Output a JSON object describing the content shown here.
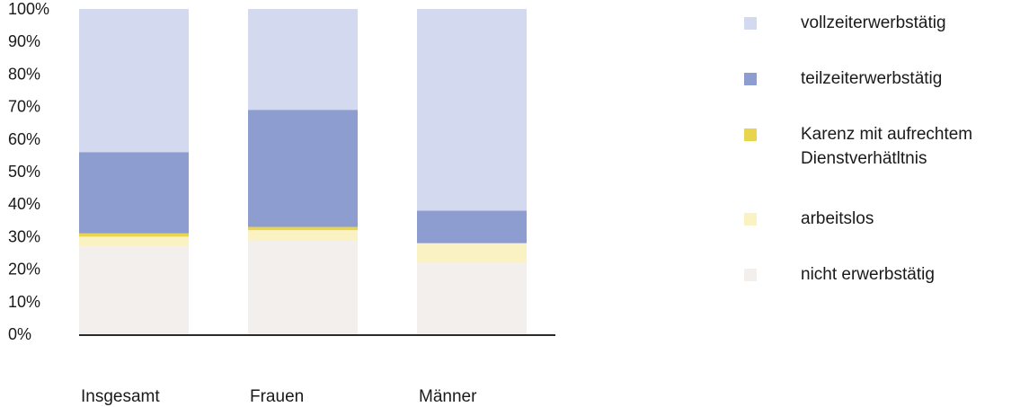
{
  "chart_data": {
    "type": "bar",
    "stacked": true,
    "categories": [
      "Insgesamt",
      "Frauen",
      "Männer"
    ],
    "ylim": [
      0,
      100
    ],
    "yticks": [
      "0%",
      "10%",
      "20%",
      "30%",
      "40%",
      "50%",
      "60%",
      "70%",
      "80%",
      "90%",
      "100%"
    ],
    "series": [
      {
        "name": "nicht erwerbstätig",
        "color": "#f2efec",
        "values": [
          27,
          29,
          22
        ]
      },
      {
        "name": "arbeitslos",
        "color": "#fbf2c4",
        "values": [
          3,
          3,
          6
        ]
      },
      {
        "name": "Karenz mit aufrechtem Dienstverhätltnis",
        "color": "#e8d44d",
        "values": [
          1,
          1,
          0
        ]
      },
      {
        "name": "teilzeiterwerbstätig",
        "color": "#8d9dd0",
        "values": [
          25,
          36,
          10
        ]
      },
      {
        "name": "vollzeiterwerbstätig",
        "color": "#d3daf0",
        "values": [
          44,
          31,
          62
        ]
      }
    ],
    "legend_position": "right",
    "grid": false
  }
}
